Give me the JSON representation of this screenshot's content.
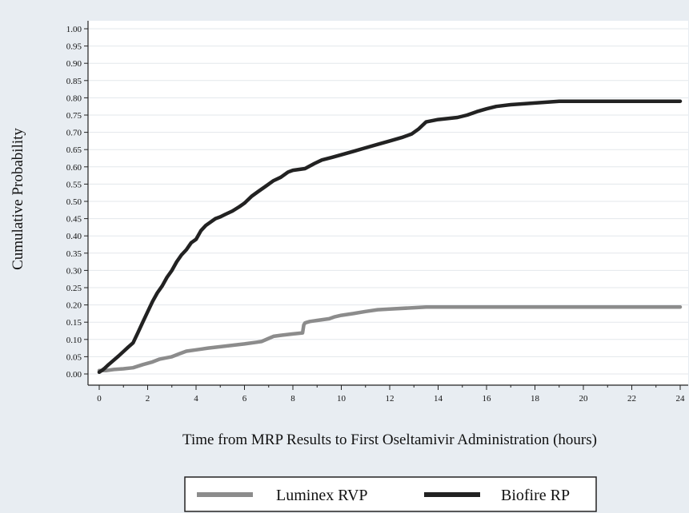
{
  "chart_data": {
    "type": "line",
    "xlabel": "Time from MRP Results to First Oseltamivir Administration (hours)",
    "ylabel": "Cumulative Probability",
    "xlim": [
      0,
      24
    ],
    "ylim": [
      0,
      1.0
    ],
    "xticks": [
      0,
      2,
      4,
      6,
      8,
      10,
      12,
      14,
      16,
      18,
      20,
      22,
      24
    ],
    "yticks": [
      "0.00",
      "0.05",
      "0.10",
      "0.15",
      "0.20",
      "0.25",
      "0.30",
      "0.35",
      "0.40",
      "0.45",
      "0.50",
      "0.55",
      "0.60",
      "0.65",
      "0.70",
      "0.75",
      "0.80",
      "0.85",
      "0.90",
      "0.95",
      "1.00"
    ],
    "grid": true,
    "legend_position": "bottom",
    "series": [
      {
        "name": "Luminex RVP",
        "color": "#8c8c8c",
        "x": [
          0,
          0.3,
          0.6,
          1.0,
          1.4,
          1.8,
          2.2,
          2.5,
          3.0,
          3.3,
          3.6,
          4.0,
          4.5,
          5.0,
          5.5,
          6.0,
          6.5,
          6.7,
          7.0,
          7.2,
          7.5,
          8.0,
          8.4,
          8.45,
          8.5,
          8.7,
          9.0,
          9.5,
          9.7,
          10.0,
          10.5,
          11.0,
          11.5,
          12.0,
          13.0,
          13.5,
          14.0,
          16.0,
          18.0,
          20.0,
          22.0,
          24.0
        ],
        "y": [
          0.01,
          0.01,
          0.013,
          0.015,
          0.018,
          0.027,
          0.035,
          0.043,
          0.05,
          0.058,
          0.066,
          0.07,
          0.075,
          0.079,
          0.083,
          0.087,
          0.092,
          0.094,
          0.103,
          0.109,
          0.112,
          0.116,
          0.119,
          0.142,
          0.148,
          0.152,
          0.155,
          0.16,
          0.165,
          0.17,
          0.175,
          0.181,
          0.186,
          0.188,
          0.192,
          0.194,
          0.194,
          0.194,
          0.194,
          0.194,
          0.194,
          0.194
        ]
      },
      {
        "name": "Biofire RP",
        "color": "#222222",
        "x": [
          0,
          0.2,
          0.4,
          0.6,
          0.8,
          1.0,
          1.2,
          1.4,
          1.6,
          1.8,
          2.0,
          2.2,
          2.4,
          2.6,
          2.8,
          3.0,
          3.2,
          3.4,
          3.6,
          3.8,
          4.0,
          4.2,
          4.4,
          4.6,
          4.8,
          5.0,
          5.2,
          5.5,
          5.8,
          6.0,
          6.3,
          6.6,
          6.9,
          7.2,
          7.5,
          7.8,
          8.0,
          8.5,
          8.9,
          9.2,
          9.6,
          10.0,
          10.5,
          11.0,
          11.5,
          12.0,
          12.5,
          12.9,
          13.2,
          13.5,
          14.0,
          14.8,
          15.2,
          15.6,
          16.0,
          16.4,
          17.0,
          18.0,
          19.0,
          19.5,
          20.0,
          22.0,
          24.0
        ],
        "y": [
          0.005,
          0.015,
          0.028,
          0.04,
          0.052,
          0.065,
          0.078,
          0.09,
          0.12,
          0.15,
          0.18,
          0.21,
          0.235,
          0.255,
          0.28,
          0.3,
          0.325,
          0.345,
          0.36,
          0.38,
          0.39,
          0.415,
          0.43,
          0.44,
          0.45,
          0.455,
          0.462,
          0.472,
          0.485,
          0.495,
          0.515,
          0.53,
          0.545,
          0.56,
          0.57,
          0.585,
          0.59,
          0.595,
          0.61,
          0.62,
          0.627,
          0.635,
          0.645,
          0.655,
          0.665,
          0.675,
          0.685,
          0.695,
          0.71,
          0.73,
          0.737,
          0.743,
          0.75,
          0.76,
          0.768,
          0.775,
          0.78,
          0.785,
          0.79,
          0.79,
          0.79,
          0.79,
          0.79
        ]
      }
    ]
  }
}
